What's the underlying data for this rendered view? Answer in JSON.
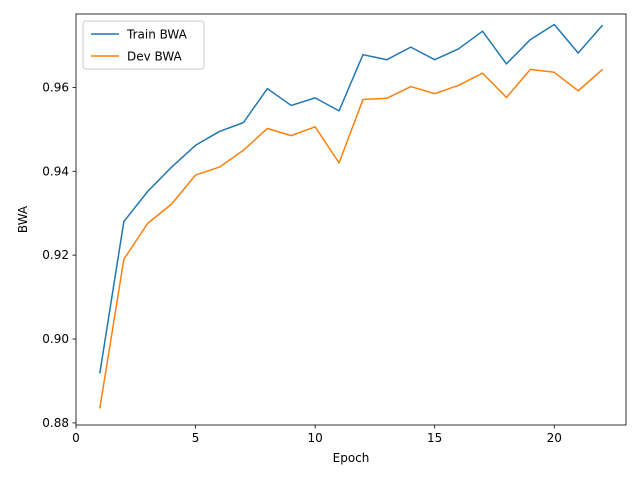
{
  "chart_data": {
    "type": "line",
    "xlabel": "Epoch",
    "ylabel": "BWA",
    "xlim": [
      0,
      23
    ],
    "ylim": [
      0.8795,
      0.9775
    ],
    "xticks": [
      0,
      5,
      10,
      15,
      20
    ],
    "xtick_labels": [
      "0",
      "5",
      "10",
      "15",
      "20"
    ],
    "yticks": [
      0.88,
      0.9,
      0.92,
      0.94,
      0.96
    ],
    "ytick_labels": [
      "0.88",
      "0.90",
      "0.92",
      "0.94",
      "0.96"
    ],
    "grid": false,
    "legend_position": "top-left",
    "x": [
      1,
      2,
      3,
      4,
      5,
      6,
      7,
      8,
      9,
      10,
      11,
      12,
      13,
      14,
      15,
      16,
      17,
      18,
      19,
      20,
      21,
      22
    ],
    "series": [
      {
        "name": "Train BWA",
        "color": "#1f77b4",
        "values": [
          0.892,
          0.928,
          0.9352,
          0.941,
          0.9462,
          0.9495,
          0.9516,
          0.9597,
          0.9557,
          0.9575,
          0.9544,
          0.9678,
          0.9666,
          0.9696,
          0.9666,
          0.9692,
          0.9734,
          0.9656,
          0.9714,
          0.975,
          0.9682,
          0.9747
        ]
      },
      {
        "name": "Dev BWA",
        "color": "#ff7f0e",
        "values": [
          0.8836,
          0.919,
          0.9276,
          0.9322,
          0.9391,
          0.941,
          0.945,
          0.9502,
          0.9485,
          0.9506,
          0.942,
          0.9571,
          0.9574,
          0.9602,
          0.9585,
          0.9605,
          0.9634,
          0.9576,
          0.9643,
          0.9636,
          0.9592,
          0.9642
        ]
      }
    ]
  }
}
